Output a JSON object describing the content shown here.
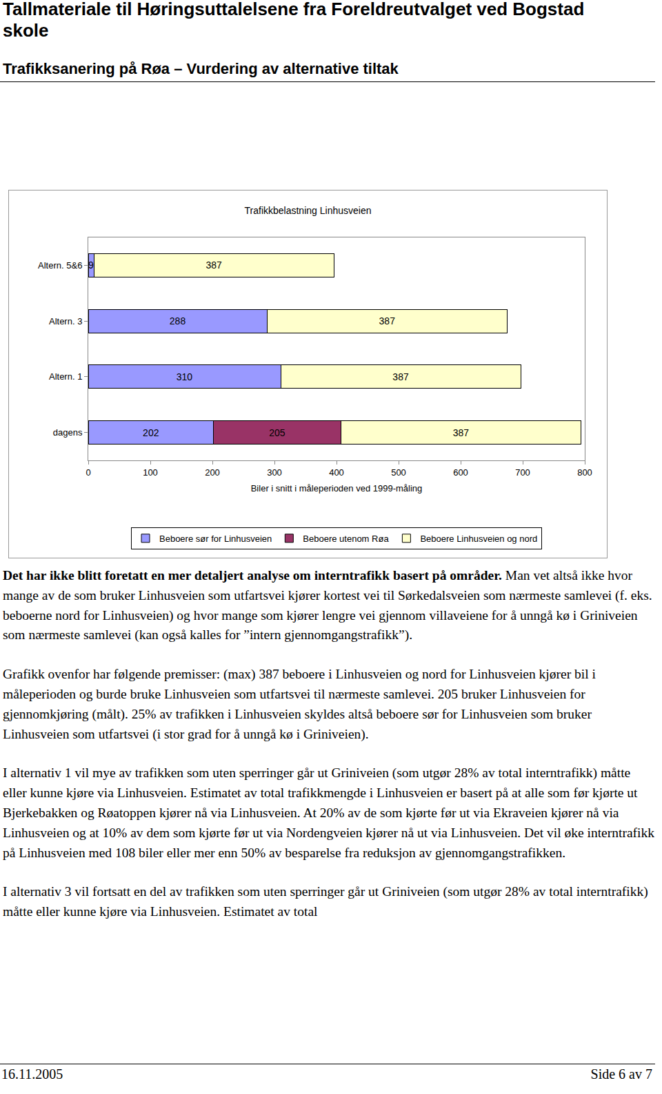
{
  "header": {
    "title": "Tallmateriale til Høringsuttalelsene fra Foreldreutvalget ved Bogstad skole",
    "subtitle": "Trafikksanering på Røa – Vurdering av alternative tiltak"
  },
  "chart_data": {
    "type": "bar",
    "title": "Trafikkbelastning Linhusveien",
    "x_label": "Biler i snitt i måleperioden ved 1999-måling",
    "orientation": "horizontal",
    "stacked": true,
    "data_labels": true,
    "grid": false,
    "legend": "bottom",
    "categories": [
      "dagens",
      "Altern. 1",
      "Altern. 3",
      "Altern. 5&6"
    ],
    "series": [
      {
        "name": "Beboere sør for Linhusveien",
        "color": "#9999ff",
        "values": [
          202,
          310,
          288,
          9
        ]
      },
      {
        "name": "Beboere utenom Røa",
        "color": "#993366",
        "values": [
          205,
          null,
          null,
          null
        ]
      },
      {
        "name": "Beboere Linhusveien og nord",
        "color": "#ffffcc",
        "values": [
          387,
          387,
          387,
          387
        ]
      }
    ],
    "xlim": [
      0,
      800
    ],
    "xticks": [
      0,
      100,
      200,
      300,
      400,
      500,
      600,
      700,
      800
    ]
  },
  "body": [
    {
      "bold": "Det har ikke blitt foretatt en mer detaljert analyse om interntrafikk basert på områder.",
      "text": " Man vet altså ikke hvor mange av de som bruker Linhusveien som utfartsvei kjører kortest vei til Sørkedalsveien som nærmeste samlevei (f. eks. beboerne nord for Linhusveien) og hvor mange som kjører lengre vei gjennom villaveiene for å unngå kø i Griniveien som nærmeste samlevei (kan også kalles for ”intern gjennomgangstrafikk”)."
    },
    {
      "text": "Grafikk ovenfor har følgende premisser: (max) 387 beboere i Linhusveien og nord for Linhusveien kjører bil i måleperioden og burde bruke Linhusveien som utfartsvei til nærmeste samlevei. 205 bruker Linhusveien for gjennomkjøring (målt). 25% av trafikken i Linhusveien skyldes altså beboere sør for Linhusveien som bruker Linhusveien som utfartsvei (i stor grad for å unngå kø i Griniveien)."
    },
    {
      "text": "I alternativ 1 vil mye av trafikken som uten sperringer går ut Griniveien (som utgør 28% av total interntrafikk) måtte eller kunne kjøre via Linhusveien. Estimatet av total trafikkmengde i Linhusveien er basert på at alle som før kjørte ut Bjerkebakken og Røatoppen  kjører nå via Linhusveien. At 20% av de som kjørte før ut via Ekraveien kjører nå via Linhusveien og at 10% av dem som kjørte før ut via Nordengveien kjører nå ut via Linhusveien. Det vil øke interntrafikk på Linhusveien med 108 biler eller mer enn 50% av besparelse fra reduksjon av gjennomgangstrafikken."
    },
    {
      "text": "I alternativ 3 vil fortsatt en del av trafikken som uten sperringer går ut Griniveien (som utgør 28% av total interntrafikk) måtte eller kunne kjøre via Linhusveien. Estimatet av total"
    }
  ],
  "footer": {
    "date": "16.11.2005",
    "page": "Side 6 av 7"
  }
}
